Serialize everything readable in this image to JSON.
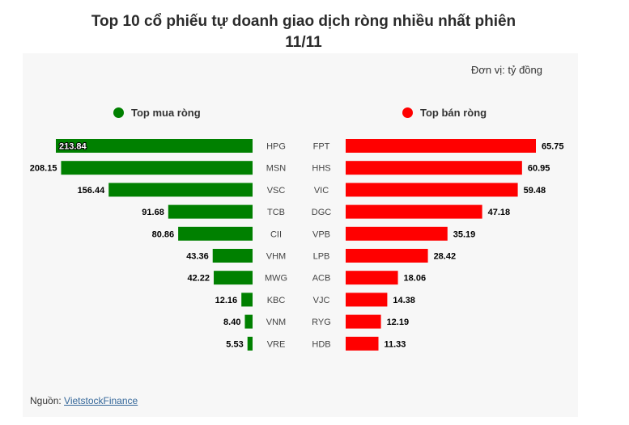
{
  "title_line1": "Top 10 cổ phiếu tự doanh giao dịch ròng nhiều nhất phiên",
  "title_line2": "11/11",
  "unit": "Đơn vị: tỷ đồng",
  "source_label": "Nguồn:",
  "source_link": "VietstockFinance",
  "colors": {
    "buy": "#008000",
    "sell": "#ff0000"
  },
  "chart_data": [
    {
      "type": "bar",
      "orientation": "horizontal",
      "direction": "left",
      "legend": "Top mua ròng",
      "categories": [
        "HPG",
        "MSN",
        "VSC",
        "TCB",
        "CII",
        "VHM",
        "MWG",
        "KBC",
        "VNM",
        "VRE"
      ],
      "values": [
        213.84,
        208.15,
        156.44,
        91.68,
        80.86,
        43.36,
        42.22,
        12.16,
        8.4,
        5.53
      ],
      "labels": [
        "213.84",
        "208.15",
        "156.44",
        "91.68",
        "80.86",
        "43.36",
        "42.22",
        "12.16",
        "8.40",
        "5.53"
      ]
    },
    {
      "type": "bar",
      "orientation": "horizontal",
      "direction": "right",
      "legend": "Top bán ròng",
      "categories": [
        "FPT",
        "HHS",
        "VIC",
        "DGC",
        "VPB",
        "LPB",
        "ACB",
        "VJC",
        "RYG",
        "HDB"
      ],
      "values": [
        65.75,
        60.95,
        59.48,
        47.18,
        35.19,
        28.42,
        18.06,
        14.38,
        12.19,
        11.33
      ],
      "labels": [
        "65.75",
        "60.95",
        "59.48",
        "47.18",
        "35.19",
        "28.42",
        "18.06",
        "14.38",
        "12.19",
        "11.33"
      ]
    }
  ]
}
